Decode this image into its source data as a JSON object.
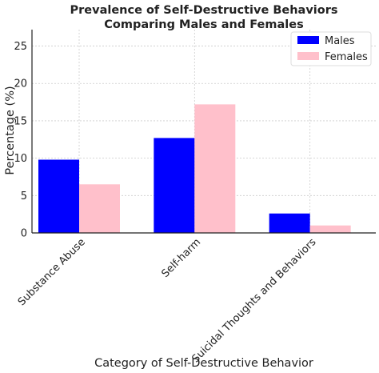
{
  "chart_data": {
    "type": "bar",
    "title": "Prevalence of Self-Destructive Behaviors",
    "subtitle": "Comparing Males and Females",
    "xlabel": "Category of Self-Destructive Behavior",
    "ylabel": "Percentage (%)",
    "categories": [
      "Substance Abuse",
      "Self-harm",
      "Suicidal Thoughts and Behaviors"
    ],
    "series": [
      {
        "name": "Males",
        "color": "#0000ff",
        "values": [
          9.8,
          12.7,
          2.6
        ]
      },
      {
        "name": "Females",
        "color": "#ffc0cb",
        "values": [
          6.5,
          17.2,
          1.0
        ]
      }
    ],
    "ylim": [
      0,
      27.2
    ],
    "yticks": [
      "0",
      "5",
      "10",
      "15",
      "20",
      "25"
    ],
    "grid": true,
    "legend_position": "top-right"
  }
}
